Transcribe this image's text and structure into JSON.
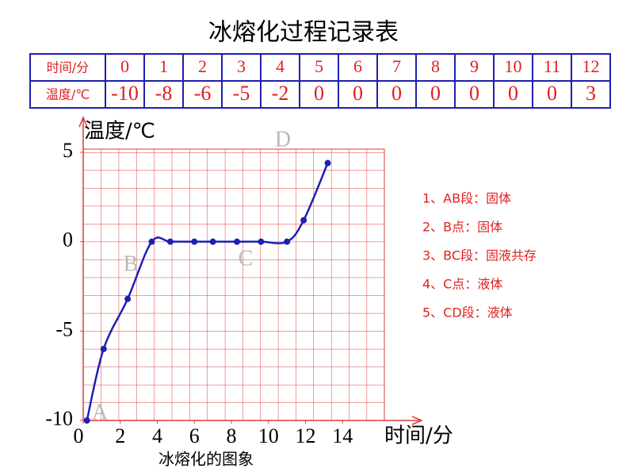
{
  "title": "冰熔化过程记录表",
  "table": {
    "rows": [
      [
        "时间/分",
        0,
        1,
        2,
        3,
        4,
        5,
        6,
        7,
        8,
        9,
        10,
        11,
        12
      ],
      [
        "温度/℃",
        -10,
        -8,
        -6,
        -5,
        -2,
        0,
        0,
        0,
        0,
        0,
        0,
        0,
        3
      ]
    ]
  },
  "chart_data": {
    "type": "line",
    "y_label": "温度/℃",
    "x_label": "时间/分",
    "caption": "冰熔化的图象",
    "xlim": [
      0,
      16
    ],
    "xticks": [
      0,
      2,
      4,
      6,
      8,
      10,
      12,
      14
    ],
    "ylim": [
      -10,
      5
    ],
    "yticks": [
      -10,
      -5,
      0,
      5
    ],
    "grid": true,
    "grid_color": "#e03a3a",
    "series": [
      {
        "color": "#1f1fb0",
        "x": [
          0.2,
          1.1,
          2.4,
          3.7,
          4.7,
          6,
          7,
          8.3,
          9.6,
          11,
          11.9,
          13.2
        ],
        "values": [
          -10,
          -6,
          -3.2,
          0,
          0,
          0,
          0,
          0,
          0,
          0,
          1.2,
          4.4
        ]
      }
    ],
    "annotations": [
      "A",
      "B",
      "C",
      "D"
    ]
  },
  "notes": [
    "1、AB段：固体",
    "2、B点：固体",
    "3、BC段：固液共存",
    "4、C点：液体",
    "5、CD段：液体"
  ]
}
